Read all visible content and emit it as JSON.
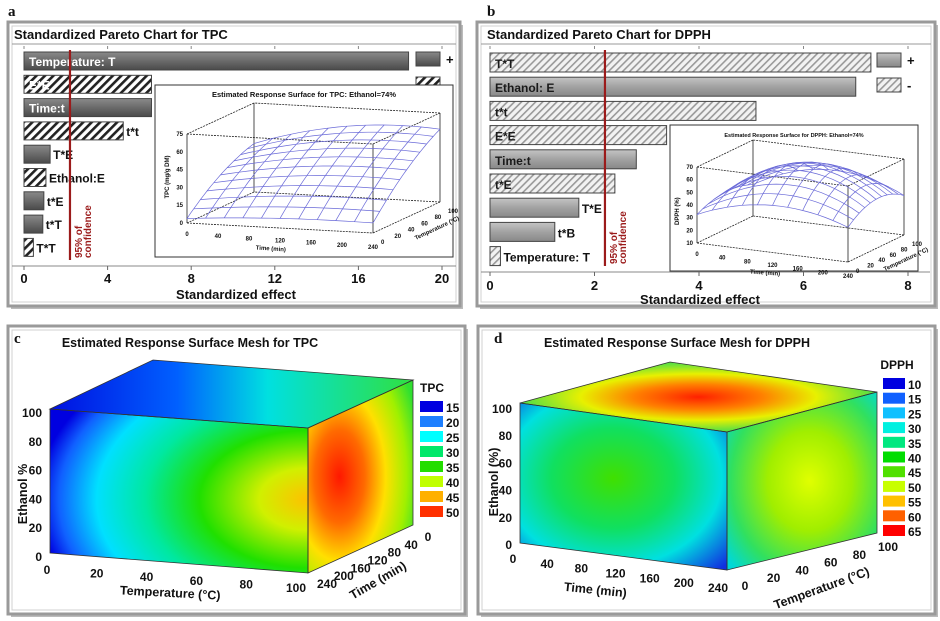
{
  "panel_labels": {
    "a": "a",
    "b": "b",
    "c": "c",
    "d": "d"
  },
  "chart_data": [
    {
      "type": "bar",
      "orientation": "horizontal",
      "title": "Standardized Pareto Chart for TPC",
      "xlabel": "Standardized effect",
      "xlim": [
        0,
        20
      ],
      "xticks": [
        "0",
        "4",
        "8",
        "12",
        "16",
        "20"
      ],
      "bar_label_color": "#ffffff",
      "colors": {
        "positive": "#6f6f6f",
        "negative_hatch": "#222222",
        "reference": "#9b1b1b"
      },
      "legend": {
        "positive": "+",
        "negative": "-",
        "placement": "top-right"
      },
      "reference_line": {
        "value": 2.2,
        "label_line1": "95% of",
        "label_line2": "confidence"
      },
      "bars": [
        {
          "label": "Temperature: T",
          "value": 18.4,
          "sign": "+"
        },
        {
          "label": "E*E",
          "value": 6.1,
          "sign": "-"
        },
        {
          "label": "Time:t",
          "value": 6.1,
          "sign": "+"
        },
        {
          "label": "t*t",
          "value": 4.75,
          "sign": "-"
        },
        {
          "label": "T*E",
          "value": 1.25,
          "sign": "+"
        },
        {
          "label": "Ethanol:E",
          "value": 1.05,
          "sign": "-"
        },
        {
          "label": "t*E",
          "value": 0.95,
          "sign": "+"
        },
        {
          "label": "t*T",
          "value": 0.9,
          "sign": "+"
        },
        {
          "label": "T*T",
          "value": 0.45,
          "sign": "-"
        }
      ],
      "inset": {
        "title": "Estimated Response Surface for TPC: Ethanol=74%",
        "ylabel": "TPC (mg/g DM)",
        "ylim": [
          0,
          75
        ],
        "yticks": [
          "0",
          "15",
          "30",
          "45",
          "60",
          "75"
        ],
        "xlabel": "Time (min)",
        "xticks": [
          "0",
          "40",
          "80",
          "120",
          "160",
          "200",
          "240"
        ],
        "zlabel": "Temperature (°C)",
        "zticks": [
          "0",
          "20",
          "40",
          "60",
          "80",
          "100"
        ]
      }
    },
    {
      "type": "bar",
      "orientation": "horizontal",
      "title": "Standardized Pareto Chart for DPPH",
      "xlabel": "Standardized effect",
      "xlim": [
        0,
        8
      ],
      "xticks": [
        "0",
        "2",
        "4",
        "6",
        "8"
      ],
      "bar_label_color": "#1a1a1a",
      "colors": {
        "positive": "#a4a4a4",
        "negative_hatch": "#8a8a8a",
        "reference": "#9b1b1b"
      },
      "legend": {
        "positive": "+",
        "negative": "-",
        "placement": "top-right"
      },
      "reference_line": {
        "value": 2.2,
        "label_line1": "95% of",
        "label_line2": "confidence"
      },
      "bars": [
        {
          "label": "T*T",
          "value": 7.29,
          "sign": "-"
        },
        {
          "label": "Ethanol: E",
          "value": 7.0,
          "sign": "+"
        },
        {
          "label": "t*t",
          "value": 5.09,
          "sign": "-"
        },
        {
          "label": "E*E",
          "value": 3.38,
          "sign": "-"
        },
        {
          "label": "Time:t",
          "value": 2.8,
          "sign": "+"
        },
        {
          "label": "t*E",
          "value": 2.39,
          "sign": "-"
        },
        {
          "label": "T*E",
          "value": 1.7,
          "sign": "+"
        },
        {
          "label": "t*B",
          "value": 1.24,
          "sign": "+"
        },
        {
          "label": "Temperature: T",
          "value": 0.2,
          "sign": "-"
        }
      ],
      "inset": {
        "title": "Estimated Response Surface for DPPH: Ethanol=74%",
        "ylabel": "DPPH (%)",
        "ylim": [
          10,
          70
        ],
        "yticks": [
          "10",
          "20",
          "30",
          "40",
          "50",
          "60",
          "70"
        ],
        "xlabel": "Time (min)",
        "xticks": [
          "0",
          "40",
          "80",
          "120",
          "160",
          "200",
          "240"
        ],
        "zlabel": "Temperature (°C)",
        "zticks": [
          "0",
          "20",
          "40",
          "60",
          "80",
          "100"
        ]
      }
    },
    {
      "type": "heatmap",
      "title": "Estimated Response Surface Mesh for TPC",
      "legend_title": "TPC",
      "levels": [
        "15",
        "20",
        "25",
        "30",
        "35",
        "40",
        "45",
        "50"
      ],
      "colors": [
        "#0000e0",
        "#1e7fff",
        "#00ffff",
        "#00e86a",
        "#22dd00",
        "#c0ff00",
        "#ffb000",
        "#ff3000"
      ],
      "ylabel": "Ethanol %",
      "yticks": [
        "0",
        "20",
        "40",
        "60",
        "80",
        "100"
      ],
      "xlabel": "Temperature (°C)",
      "xticks": [
        "0",
        "20",
        "40",
        "60",
        "80",
        "100"
      ],
      "zlabel": "Time (min)",
      "zticks": [
        "240",
        "200",
        "160",
        "120",
        "80",
        "40",
        "0"
      ]
    },
    {
      "type": "heatmap",
      "title": "Estimated Response Surface Mesh for DPPH",
      "legend_title": "DPPH",
      "levels": [
        "10",
        "15",
        "25",
        "30",
        "35",
        "40",
        "45",
        "50",
        "55",
        "60",
        "65"
      ],
      "colors": [
        "#0000e0",
        "#1060ff",
        "#10c0ff",
        "#00f0e0",
        "#00e880",
        "#00dd00",
        "#50e000",
        "#c8ff00",
        "#ffc000",
        "#ff6000",
        "#ff0000"
      ],
      "ylabel": "Ethanol (%)",
      "yticks": [
        "0",
        "20",
        "40",
        "60",
        "80",
        "100"
      ],
      "xlabel": "Time (min)",
      "xticks": [
        "0",
        "40",
        "80",
        "120",
        "160",
        "200",
        "240"
      ],
      "zlabel": "Temperature (°C)",
      "zticks": [
        "0",
        "20",
        "40",
        "60",
        "80",
        "100"
      ]
    }
  ]
}
